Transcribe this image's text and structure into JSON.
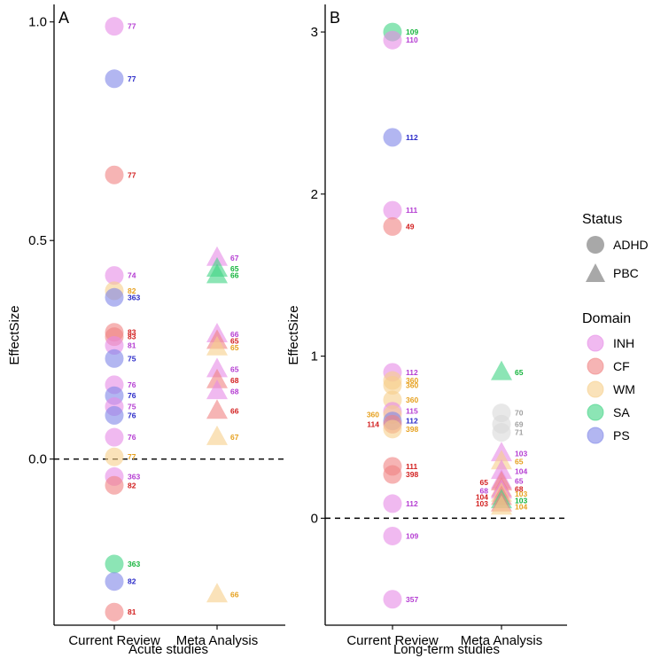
{
  "colors": {
    "INH": "#e68ae6",
    "CF": "#f08282",
    "WM": "#f7cf8a",
    "SA": "#3fd383",
    "PS": "#7f86e8",
    "NA": "#d9d9d9"
  },
  "label_colors": {
    "INH": "#b43cd2",
    "CF": "#d21e1e",
    "WM": "#e6a01e",
    "SA": "#14b43c",
    "PS": "#2828c8",
    "NA": "#a0a0a0"
  },
  "legend": {
    "status_title": "Status",
    "status_items": [
      {
        "shape": "circle",
        "label": "ADHD"
      },
      {
        "shape": "triangle",
        "label": "PBC"
      }
    ],
    "domain_title": "Domain",
    "domain_items": [
      {
        "key": "INH",
        "label": "INH"
      },
      {
        "key": "CF",
        "label": "CF"
      },
      {
        "key": "WM",
        "label": "WM"
      },
      {
        "key": "SA",
        "label": "SA"
      },
      {
        "key": "PS",
        "label": "PS"
      }
    ]
  },
  "chart_data": [
    {
      "type": "scatter",
      "panel": "A",
      "xlabel": "Acute studies",
      "ylabel": "EffectSize",
      "categories": [
        "Current Review",
        "Meta Analysis"
      ],
      "ylim": [
        -0.38,
        1.04
      ],
      "yticks": [
        0.0,
        0.5,
        1.0
      ],
      "ytick_labels": [
        "0.0",
        "0.5",
        "1.0"
      ],
      "reference_line": 0,
      "points": [
        {
          "cat": 0,
          "y": 0.99,
          "domain": "INH",
          "shape": "circle",
          "label": "77"
        },
        {
          "cat": 0,
          "y": 0.87,
          "domain": "PS",
          "shape": "circle",
          "label": "77"
        },
        {
          "cat": 0,
          "y": 0.65,
          "domain": "CF",
          "shape": "circle",
          "label": "77"
        },
        {
          "cat": 0,
          "y": 0.42,
          "domain": "INH",
          "shape": "circle",
          "label": "74"
        },
        {
          "cat": 0,
          "y": 0.385,
          "domain": "WM",
          "shape": "circle",
          "label": "82"
        },
        {
          "cat": 0,
          "y": 0.37,
          "domain": "PS",
          "shape": "circle",
          "label": "363"
        },
        {
          "cat": 0,
          "y": 0.29,
          "domain": "CF",
          "shape": "circle",
          "label": "83"
        },
        {
          "cat": 0,
          "y": 0.28,
          "domain": "CF",
          "shape": "circle",
          "label": "83"
        },
        {
          "cat": 0,
          "y": 0.26,
          "domain": "INH",
          "shape": "circle",
          "label": "81"
        },
        {
          "cat": 0,
          "y": 0.23,
          "domain": "PS",
          "shape": "circle",
          "label": "75"
        },
        {
          "cat": 0,
          "y": 0.17,
          "domain": "INH",
          "shape": "circle",
          "label": "76"
        },
        {
          "cat": 0,
          "y": 0.145,
          "domain": "PS",
          "shape": "circle",
          "label": "76"
        },
        {
          "cat": 0,
          "y": 0.12,
          "domain": "INH",
          "shape": "circle",
          "label": "75"
        },
        {
          "cat": 0,
          "y": 0.1,
          "domain": "PS",
          "shape": "circle",
          "label": "76"
        },
        {
          "cat": 0,
          "y": 0.05,
          "domain": "INH",
          "shape": "circle",
          "label": "76"
        },
        {
          "cat": 0,
          "y": 0.005,
          "domain": "WM",
          "shape": "circle",
          "label": "77"
        },
        {
          "cat": 0,
          "y": -0.04,
          "domain": "INH",
          "shape": "circle",
          "label": "363"
        },
        {
          "cat": 0,
          "y": -0.06,
          "domain": "CF",
          "shape": "circle",
          "label": "82"
        },
        {
          "cat": 0,
          "y": -0.24,
          "domain": "SA",
          "shape": "circle",
          "label": "363"
        },
        {
          "cat": 0,
          "y": -0.28,
          "domain": "PS",
          "shape": "circle",
          "label": "82"
        },
        {
          "cat": 0,
          "y": -0.35,
          "domain": "CF",
          "shape": "circle",
          "label": "81"
        },
        {
          "cat": 1,
          "y": 0.46,
          "domain": "INH",
          "shape": "triangle",
          "label": "67"
        },
        {
          "cat": 1,
          "y": 0.435,
          "domain": "SA",
          "shape": "triangle",
          "label": "65"
        },
        {
          "cat": 1,
          "y": 0.42,
          "domain": "SA",
          "shape": "triangle",
          "label": "66"
        },
        {
          "cat": 1,
          "y": 0.285,
          "domain": "INH",
          "shape": "triangle",
          "label": "66"
        },
        {
          "cat": 1,
          "y": 0.27,
          "domain": "CF",
          "shape": "triangle",
          "label": "65"
        },
        {
          "cat": 1,
          "y": 0.255,
          "domain": "WM",
          "shape": "triangle",
          "label": "65"
        },
        {
          "cat": 1,
          "y": 0.205,
          "domain": "INH",
          "shape": "triangle",
          "label": "65"
        },
        {
          "cat": 1,
          "y": 0.18,
          "domain": "CF",
          "shape": "triangle",
          "label": "68"
        },
        {
          "cat": 1,
          "y": 0.155,
          "domain": "INH",
          "shape": "triangle",
          "label": "68"
        },
        {
          "cat": 1,
          "y": 0.11,
          "domain": "CF",
          "shape": "triangle",
          "label": "66"
        },
        {
          "cat": 1,
          "y": 0.05,
          "domain": "WM",
          "shape": "triangle",
          "label": "67"
        },
        {
          "cat": 1,
          "y": -0.31,
          "domain": "WM",
          "shape": "triangle",
          "label": "66"
        }
      ]
    },
    {
      "type": "scatter",
      "panel": "B",
      "xlabel": "Long-term studies",
      "ylabel": "EffectSize",
      "categories": [
        "Current Review",
        "Meta Analysis"
      ],
      "ylim": [
        -0.66,
        3.17
      ],
      "yticks": [
        0,
        1,
        2,
        3
      ],
      "ytick_labels": [
        "0",
        "1",
        "2",
        "3"
      ],
      "reference_line": 0,
      "points": [
        {
          "cat": 0,
          "y": 3.0,
          "domain": "SA",
          "shape": "circle",
          "label": "109"
        },
        {
          "cat": 0,
          "y": 2.95,
          "domain": "INH",
          "shape": "circle",
          "label": "110"
        },
        {
          "cat": 0,
          "y": 2.35,
          "domain": "PS",
          "shape": "circle",
          "label": "112"
        },
        {
          "cat": 0,
          "y": 1.9,
          "domain": "INH",
          "shape": "circle",
          "label": "111"
        },
        {
          "cat": 0,
          "y": 1.8,
          "domain": "CF",
          "shape": "circle",
          "label": "49"
        },
        {
          "cat": 0,
          "y": 0.9,
          "domain": "INH",
          "shape": "circle",
          "label": "112"
        },
        {
          "cat": 0,
          "y": 0.85,
          "domain": "WM",
          "shape": "circle",
          "label": "360"
        },
        {
          "cat": 0,
          "y": 0.82,
          "domain": "WM",
          "shape": "circle",
          "label": "360"
        },
        {
          "cat": 0,
          "y": 0.73,
          "domain": "WM",
          "shape": "circle",
          "label": "360"
        },
        {
          "cat": 0,
          "y": 0.66,
          "domain": "INH",
          "shape": "circle",
          "label": "115"
        },
        {
          "cat": 0,
          "y": 0.64,
          "domain": "WM",
          "shape": "circle",
          "label": "360",
          "label_side": "left"
        },
        {
          "cat": 0,
          "y": 0.6,
          "domain": "PS",
          "shape": "circle",
          "label": "112"
        },
        {
          "cat": 0,
          "y": 0.58,
          "domain": "CF",
          "shape": "circle",
          "label": "114",
          "label_side": "left"
        },
        {
          "cat": 0,
          "y": 0.55,
          "domain": "WM",
          "shape": "circle",
          "label": "398"
        },
        {
          "cat": 0,
          "y": 0.32,
          "domain": "CF",
          "shape": "circle",
          "label": "111"
        },
        {
          "cat": 0,
          "y": 0.27,
          "domain": "CF",
          "shape": "circle",
          "label": "398"
        },
        {
          "cat": 0,
          "y": 0.09,
          "domain": "INH",
          "shape": "circle",
          "label": "112"
        },
        {
          "cat": 0,
          "y": -0.11,
          "domain": "INH",
          "shape": "circle",
          "label": "109"
        },
        {
          "cat": 0,
          "y": -0.5,
          "domain": "INH",
          "shape": "circle",
          "label": "357"
        },
        {
          "cat": 1,
          "y": 0.9,
          "domain": "SA",
          "shape": "triangle",
          "label": "65"
        },
        {
          "cat": 1,
          "y": 0.65,
          "domain": "NA",
          "shape": "circle",
          "label": "70"
        },
        {
          "cat": 1,
          "y": 0.58,
          "domain": "NA",
          "shape": "circle",
          "label": "69"
        },
        {
          "cat": 1,
          "y": 0.53,
          "domain": "NA",
          "shape": "circle",
          "label": "71"
        },
        {
          "cat": 1,
          "y": 0.4,
          "domain": "INH",
          "shape": "triangle",
          "label": "103"
        },
        {
          "cat": 1,
          "y": 0.35,
          "domain": "WM",
          "shape": "triangle",
          "label": "65"
        },
        {
          "cat": 1,
          "y": 0.29,
          "domain": "INH",
          "shape": "triangle",
          "label": "104"
        },
        {
          "cat": 1,
          "y": 0.23,
          "domain": "INH",
          "shape": "triangle",
          "label": "65"
        },
        {
          "cat": 1,
          "y": 0.22,
          "domain": "CF",
          "shape": "triangle",
          "label": "65",
          "label_side": "left"
        },
        {
          "cat": 1,
          "y": 0.18,
          "domain": "CF",
          "shape": "triangle",
          "label": "68"
        },
        {
          "cat": 1,
          "y": 0.17,
          "domain": "INH",
          "shape": "triangle",
          "label": "68",
          "label_side": "left"
        },
        {
          "cat": 1,
          "y": 0.15,
          "domain": "WM",
          "shape": "triangle",
          "label": "103"
        },
        {
          "cat": 1,
          "y": 0.13,
          "domain": "CF",
          "shape": "triangle",
          "label": "104",
          "label_side": "left"
        },
        {
          "cat": 1,
          "y": 0.11,
          "domain": "SA",
          "shape": "triangle",
          "label": "103"
        },
        {
          "cat": 1,
          "y": 0.09,
          "domain": "CF",
          "shape": "triangle",
          "label": "103",
          "label_side": "left"
        },
        {
          "cat": 1,
          "y": 0.07,
          "domain": "WM",
          "shape": "triangle",
          "label": "104"
        }
      ]
    }
  ]
}
